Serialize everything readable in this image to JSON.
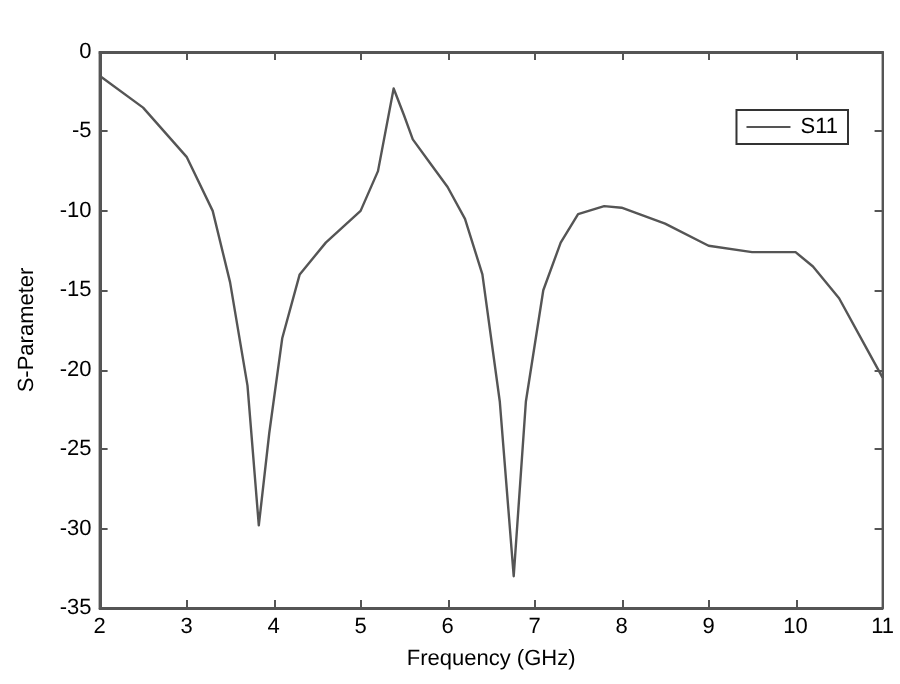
{
  "chart_data": {
    "type": "line",
    "xlabel": "Frequency (GHz)",
    "ylabel": "S-Parameter",
    "x": [
      2,
      2.5,
      3,
      3.3,
      3.5,
      3.7,
      3.83,
      3.95,
      4.1,
      4.3,
      4.6,
      5.0,
      5.2,
      5.38,
      5.5,
      5.6,
      5.8,
      6.0,
      6.2,
      6.4,
      6.6,
      6.76,
      6.9,
      7.1,
      7.3,
      7.5,
      7.8,
      8.0,
      8.5,
      9.0,
      9.5,
      10.0,
      10.2,
      10.5,
      10.8,
      11
    ],
    "series": [
      {
        "name": "S11",
        "color": "#555555",
        "values": [
          -1.5,
          -3.5,
          -6.6,
          -10,
          -14.5,
          -21,
          -29.8,
          -24,
          -18,
          -14,
          -12,
          -10,
          -7.5,
          -2.3,
          -4,
          -5.5,
          -7,
          -8.5,
          -10.5,
          -14,
          -22,
          -33,
          -22,
          -15,
          -12,
          -10.2,
          -9.7,
          -9.8,
          -10.8,
          -12.2,
          -12.6,
          -12.6,
          -13.5,
          -15.5,
          -18.5,
          -20.5
        ]
      }
    ],
    "xlim": [
      2,
      11
    ],
    "xticks": [
      2,
      3,
      4,
      5,
      6,
      7,
      8,
      9,
      10,
      11
    ],
    "ylim": [
      -35,
      0
    ],
    "yticks": [
      -35,
      -30,
      -25,
      -20,
      -15,
      -10,
      -5,
      0
    ],
    "grid": false,
    "legend": "top right",
    "marker": "none",
    "line_style": "solid"
  }
}
